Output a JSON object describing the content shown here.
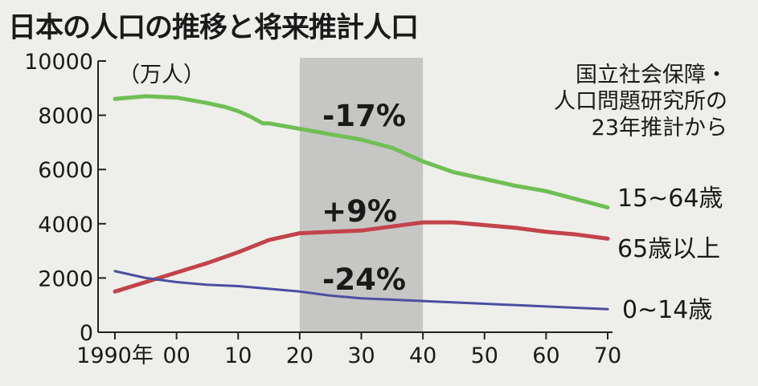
{
  "chart_data": {
    "type": "line",
    "title": "日本の人口の推移と将来推計人口",
    "ylabel": "（万人）",
    "source": [
      "国立社会保障・",
      "人口問題研究所の",
      "23年推計から"
    ],
    "x_tick_labels": [
      "1990年",
      "00",
      "10",
      "20",
      "30",
      "40",
      "50",
      "60",
      "70"
    ],
    "x_ticks": [
      1990,
      2000,
      2010,
      2020,
      2030,
      2040,
      2050,
      2060,
      2070
    ],
    "y_ticks": [
      0,
      2000,
      4000,
      6000,
      8000,
      10000
    ],
    "xlim": [
      1990,
      2070
    ],
    "ylim": [
      0,
      10000
    ],
    "shaded_range": [
      2020,
      2040
    ],
    "annotations": [
      "-17%",
      "+9%",
      "-24%"
    ],
    "series": [
      {
        "name": "15~64歳",
        "color": "#6fbf55",
        "x": [
          1990,
          1995,
          2000,
          2005,
          2008,
          2010,
          2012,
          2014,
          2015,
          2020,
          2025,
          2030,
          2035,
          2040,
          2045,
          2050,
          2055,
          2060,
          2065,
          2070
        ],
        "values": [
          8600,
          8700,
          8650,
          8450,
          8300,
          8150,
          7950,
          7700,
          7700,
          7500,
          7300,
          7100,
          6800,
          6300,
          5900,
          5650,
          5400,
          5200,
          4900,
          4600
        ]
      },
      {
        "name": "65歳以上",
        "color": "#c2444a",
        "x": [
          1990,
          1995,
          2000,
          2005,
          2010,
          2015,
          2020,
          2025,
          2030,
          2035,
          2040,
          2045,
          2050,
          2055,
          2060,
          2065,
          2070
        ],
        "values": [
          1500,
          1850,
          2200,
          2550,
          2950,
          3400,
          3650,
          3700,
          3750,
          3900,
          4050,
          4050,
          3950,
          3850,
          3700,
          3600,
          3450
        ]
      },
      {
        "name": "0~14歳",
        "color": "#4c4fa0",
        "x": [
          1990,
          1995,
          2000,
          2005,
          2010,
          2015,
          2020,
          2025,
          2030,
          2035,
          2040,
          2050,
          2060,
          2070
        ],
        "values": [
          2250,
          2000,
          1850,
          1750,
          1700,
          1600,
          1500,
          1350,
          1250,
          1200,
          1150,
          1050,
          950,
          850
        ]
      }
    ]
  }
}
